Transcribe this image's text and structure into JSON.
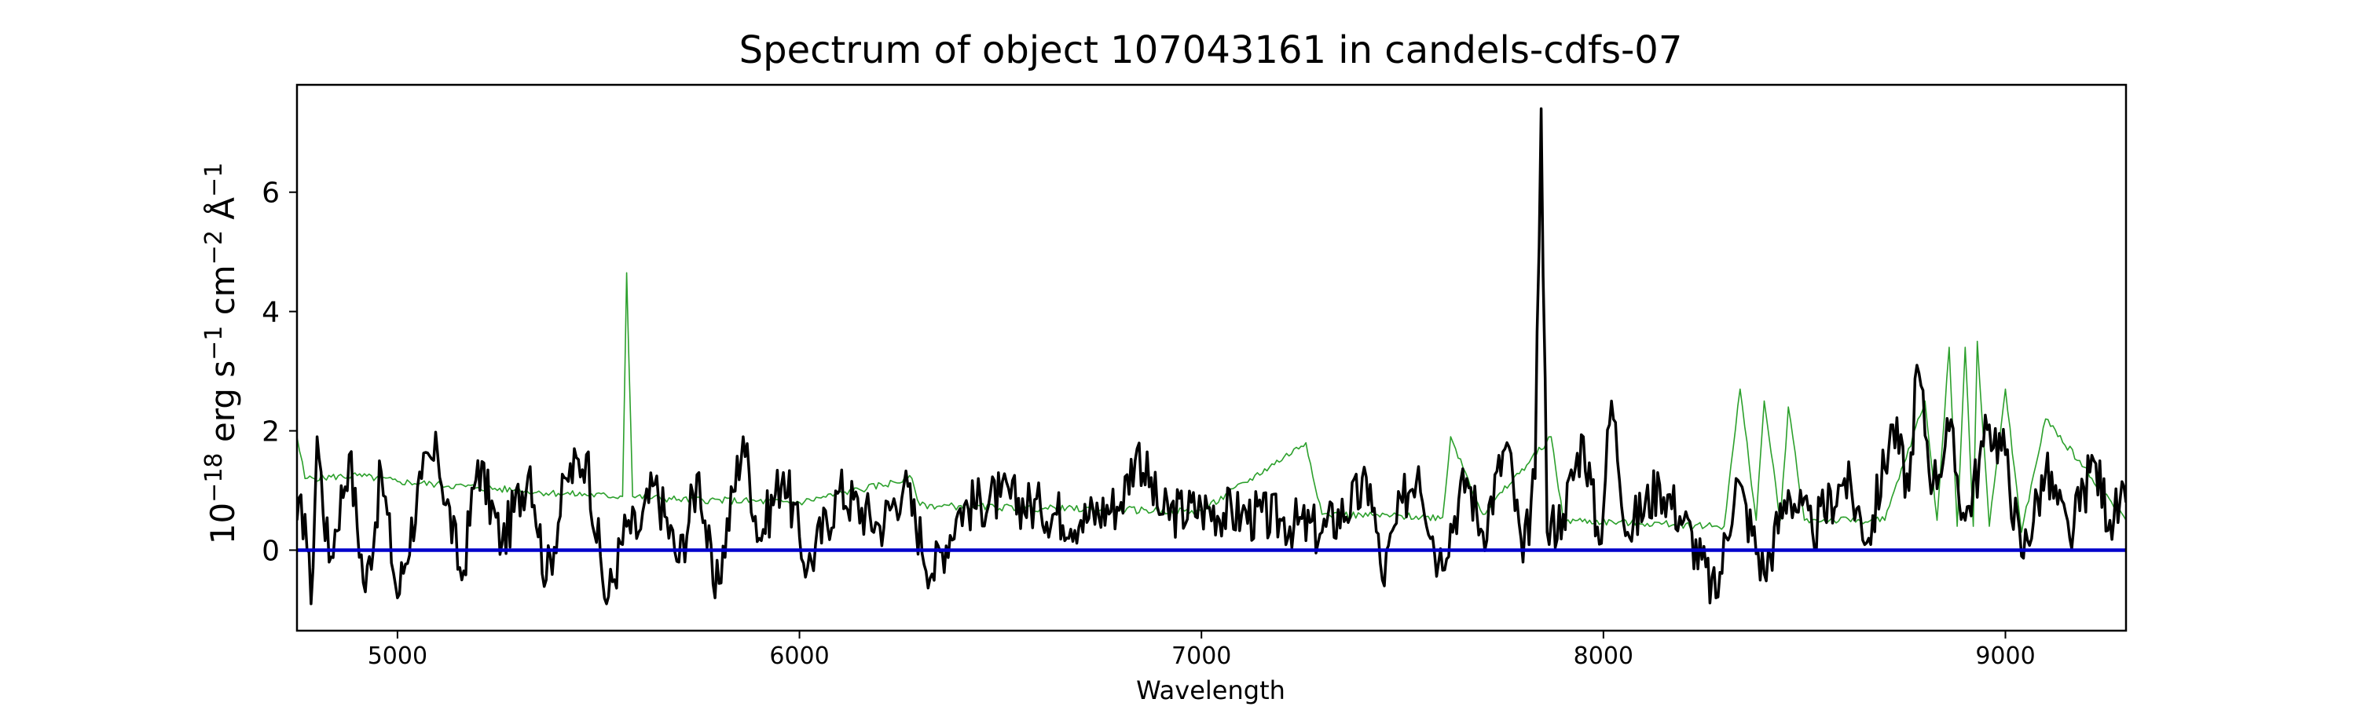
{
  "chart_data": {
    "type": "line",
    "title": "Spectrum of object 107043161 in candels-cdfs-07",
    "xlabel": "Wavelength",
    "ylabel_parts": {
      "base": "10",
      "exp1": "−18",
      "erg": " erg s",
      "exp2": "−1",
      "cm": " cm",
      "exp3": "−2",
      "ang": " Å",
      "exp4": "−1"
    },
    "xlim": [
      4750,
      9300
    ],
    "ylim": [
      -1.35,
      7.8
    ],
    "x_ticks": [
      5000,
      6000,
      7000,
      8000,
      9000
    ],
    "x_tick_labels": [
      "5000",
      "6000",
      "7000",
      "8000",
      "9000"
    ],
    "y_ticks": [
      0,
      2,
      4,
      6
    ],
    "y_tick_labels": [
      "0",
      "2",
      "4",
      "6"
    ],
    "grid": false,
    "legend": "none",
    "series": [
      {
        "color": "#000000",
        "role": "observed flux",
        "anchors": [
          [
            4750,
            0.5
          ],
          [
            4770,
            0.6
          ],
          [
            4785,
            -0.9
          ],
          [
            4800,
            1.9
          ],
          [
            4830,
            -0.2
          ],
          [
            4880,
            1.6
          ],
          [
            4920,
            -0.7
          ],
          [
            4960,
            1.3
          ],
          [
            5000,
            -0.8
          ],
          [
            5060,
            1.2
          ],
          [
            5100,
            1.6
          ],
          [
            5160,
            -0.5
          ],
          [
            5200,
            1.5
          ],
          [
            5260,
            0.1
          ],
          [
            5330,
            1.4
          ],
          [
            5370,
            -0.5
          ],
          [
            5420,
            1.2
          ],
          [
            5470,
            1.6
          ],
          [
            5520,
            -0.9
          ],
          [
            5570,
            0.4
          ],
          [
            5600,
            0.3
          ],
          [
            5640,
            1.1
          ],
          [
            5700,
            -0.2
          ],
          [
            5750,
            1.3
          ],
          [
            5790,
            -0.8
          ],
          [
            5860,
            1.9
          ],
          [
            5900,
            0.2
          ],
          [
            5960,
            1.3
          ],
          [
            6020,
            -0.3
          ],
          [
            6100,
            1.0
          ],
          [
            6200,
            0.4
          ],
          [
            6260,
            1.1
          ],
          [
            6330,
            -0.4
          ],
          [
            6400,
            0.7
          ],
          [
            6500,
            0.9
          ],
          [
            6600,
            0.7
          ],
          [
            6700,
            0.5
          ],
          [
            6800,
            0.8
          ],
          [
            6840,
            1.7
          ],
          [
            6900,
            0.6
          ],
          [
            7000,
            0.7
          ],
          [
            7100,
            0.6
          ],
          [
            7200,
            0.5
          ],
          [
            7300,
            0.3
          ],
          [
            7420,
            1.1
          ],
          [
            7450,
            -0.5
          ],
          [
            7500,
            0.8
          ],
          [
            7540,
            1.4
          ],
          [
            7590,
            -0.2
          ],
          [
            7660,
            1.2
          ],
          [
            7700,
            0.3
          ],
          [
            7760,
            1.8
          ],
          [
            7800,
            -0.2
          ],
          [
            7830,
            1.2
          ],
          [
            7845,
            7.4
          ],
          [
            7860,
            0.3
          ],
          [
            7900,
            0.6
          ],
          [
            7950,
            1.9
          ],
          [
            7990,
            0.1
          ],
          [
            8020,
            2.5
          ],
          [
            8060,
            0.3
          ],
          [
            8140,
            1.1
          ],
          [
            8200,
            0.5
          ],
          [
            8280,
            -0.8
          ],
          [
            8330,
            1.2
          ],
          [
            8400,
            -0.4
          ],
          [
            8460,
            1.0
          ],
          [
            8520,
            0.3
          ],
          [
            8600,
            1.2
          ],
          [
            8660,
            0.2
          ],
          [
            8720,
            2.1
          ],
          [
            8760,
            1.0
          ],
          [
            8780,
            3.1
          ],
          [
            8820,
            1.1
          ],
          [
            8860,
            2.0
          ],
          [
            8900,
            0.5
          ],
          [
            8960,
            2.1
          ],
          [
            9000,
            1.6
          ],
          [
            9040,
            -0.1
          ],
          [
            9100,
            1.3
          ],
          [
            9160,
            0.2
          ],
          [
            9220,
            1.5
          ],
          [
            9260,
            0.5
          ],
          [
            9300,
            0.8
          ]
        ]
      },
      {
        "color": "#2ca02c",
        "role": "model / sky",
        "anchors": [
          [
            4750,
            1.9
          ],
          [
            4770,
            1.2
          ],
          [
            4900,
            1.25
          ],
          [
            5000,
            1.15
          ],
          [
            5200,
            1.05
          ],
          [
            5400,
            0.95
          ],
          [
            5560,
            0.9
          ],
          [
            5570,
            4.65
          ],
          [
            5585,
            0.9
          ],
          [
            5700,
            0.85
          ],
          [
            6000,
            0.8
          ],
          [
            6280,
            1.2
          ],
          [
            6300,
            0.75
          ],
          [
            6600,
            0.7
          ],
          [
            7000,
            0.65
          ],
          [
            7260,
            1.8
          ],
          [
            7300,
            0.6
          ],
          [
            7600,
            0.55
          ],
          [
            7620,
            1.9
          ],
          [
            7700,
            0.6
          ],
          [
            7870,
            1.9
          ],
          [
            7900,
            0.5
          ],
          [
            8300,
            0.4
          ],
          [
            8340,
            2.7
          ],
          [
            8380,
            0.5
          ],
          [
            8400,
            2.5
          ],
          [
            8440,
            0.5
          ],
          [
            8460,
            2.4
          ],
          [
            8500,
            0.5
          ],
          [
            8700,
            0.5
          ],
          [
            8800,
            2.5
          ],
          [
            8830,
            0.5
          ],
          [
            8860,
            3.4
          ],
          [
            8880,
            0.4
          ],
          [
            8900,
            3.4
          ],
          [
            8920,
            0.4
          ],
          [
            8930,
            3.5
          ],
          [
            8960,
            0.4
          ],
          [
            9000,
            2.7
          ],
          [
            9040,
            0.3
          ],
          [
            9100,
            2.2
          ],
          [
            9300,
            0.5
          ]
        ]
      },
      {
        "color": "#0000cc",
        "role": "zero line",
        "anchors": [
          [
            4750,
            0
          ],
          [
            9300,
            0
          ]
        ]
      }
    ]
  }
}
